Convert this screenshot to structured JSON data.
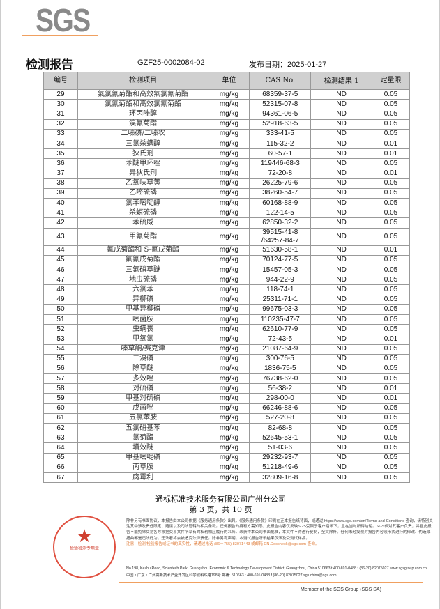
{
  "header": {
    "logo": "SGS",
    "title": "检测报告",
    "report_no": "GZF25-0002084-02",
    "date": "发布日期：2025-01-27"
  },
  "table": {
    "headers": [
      "编号",
      "检测项目",
      "单位",
      "CAS No.",
      "检测结果 1",
      "定量限"
    ],
    "rows": [
      [
        "29",
        "氟氯氰菊酯和高效氟氯氰菊酯",
        "mg/kg",
        "68359-37-5",
        "ND",
        "0.05"
      ],
      [
        "30",
        "氯氰菊酯和高效氯氰菊酯",
        "mg/kg",
        "52315-07-8",
        "ND",
        "0.05"
      ],
      [
        "31",
        "环丙唑醇",
        "mg/kg",
        "94361-06-5",
        "ND",
        "0.05"
      ],
      [
        "32",
        "溴氰菊酯",
        "mg/kg",
        "52918-63-5",
        "ND",
        "0.05"
      ],
      [
        "33",
        "二嗪磷/二嗪农",
        "mg/kg",
        "333-41-5",
        "ND",
        "0.05"
      ],
      [
        "34",
        "三氯杀螨醇",
        "mg/kg",
        "115-32-2",
        "ND",
        "0.01"
      ],
      [
        "35",
        "狄氏剂",
        "mg/kg",
        "60-57-1",
        "ND",
        "0.01"
      ],
      [
        "36",
        "苯醚甲环唑",
        "mg/kg",
        "119446-68-3",
        "ND",
        "0.05"
      ],
      [
        "37",
        "异狄氏剂",
        "mg/kg",
        "72-20-8",
        "ND",
        "0.01"
      ],
      [
        "38",
        "乙氧呋草黄",
        "mg/kg",
        "26225-79-6",
        "ND",
        "0.05"
      ],
      [
        "39",
        "乙嘧硫磷",
        "mg/kg",
        "38260-54-7",
        "ND",
        "0.05"
      ],
      [
        "40",
        "氯苯嘧啶醇",
        "mg/kg",
        "60168-88-9",
        "ND",
        "0.05"
      ],
      [
        "41",
        "杀螟硫磷",
        "mg/kg",
        "122-14-5",
        "ND",
        "0.05"
      ],
      [
        "42",
        "苯硫威",
        "mg/kg",
        "62850-32-2",
        "ND",
        "0.05"
      ],
      [
        "43",
        "甲氰菊酯",
        "mg/kg",
        "39515-41-8 /64257-84-7",
        "ND",
        "0.05"
      ],
      [
        "44",
        "氰戊菊酯和 S-氰戊菊酯",
        "mg/kg",
        "51630-58-1",
        "ND",
        "0.01"
      ],
      [
        "45",
        "氟氰戊菊酯",
        "mg/kg",
        "70124-77-5",
        "ND",
        "0.05"
      ],
      [
        "46",
        "三氟硝草醚",
        "mg/kg",
        "15457-05-3",
        "ND",
        "0.05"
      ],
      [
        "47",
        "地虫硫磷",
        "mg/kg",
        "944-22-9",
        "ND",
        "0.05"
      ],
      [
        "48",
        "六氯苯",
        "mg/kg",
        "118-74-1",
        "ND",
        "0.05"
      ],
      [
        "49",
        "异柳磷",
        "mg/kg",
        "25311-71-1",
        "ND",
        "0.05"
      ],
      [
        "50",
        "甲基异柳磷",
        "mg/kg",
        "99675-03-3",
        "ND",
        "0.05"
      ],
      [
        "51",
        "嘧菌胺",
        "mg/kg",
        "110235-47-7",
        "ND",
        "0.05"
      ],
      [
        "52",
        "虫螨畏",
        "mg/kg",
        "62610-77-9",
        "ND",
        "0.05"
      ],
      [
        "53",
        "甲氧氯",
        "mg/kg",
        "72-43-5",
        "ND",
        "0.01"
      ],
      [
        "54",
        "嗪草酮/赛克津",
        "mg/kg",
        "21087-64-9",
        "ND",
        "0.05"
      ],
      [
        "55",
        "二溴磷",
        "mg/kg",
        "300-76-5",
        "ND",
        "0.05"
      ],
      [
        "56",
        "除草醚",
        "mg/kg",
        "1836-75-5",
        "ND",
        "0.05"
      ],
      [
        "57",
        "多效唑",
        "mg/kg",
        "76738-62-0",
        "ND",
        "0.05"
      ],
      [
        "58",
        "对硫磷",
        "mg/kg",
        "56-38-2",
        "ND",
        "0.01"
      ],
      [
        "59",
        "甲基对硫磷",
        "mg/kg",
        "298-00-0",
        "ND",
        "0.01"
      ],
      [
        "60",
        "戊菌唑",
        "mg/kg",
        "66246-88-6",
        "ND",
        "0.05"
      ],
      [
        "61",
        "五氯苯胺",
        "mg/kg",
        "527-20-8",
        "ND",
        "0.05"
      ],
      [
        "62",
        "五氯硝基苯",
        "mg/kg",
        "82-68-8",
        "ND",
        "0.05"
      ],
      [
        "63",
        "氯菊酯",
        "mg/kg",
        "52645-53-1",
        "ND",
        "0.05"
      ],
      [
        "64",
        "增效醚",
        "mg/kg",
        "51-03-6",
        "ND",
        "0.05"
      ],
      [
        "65",
        "甲基嘧啶磷",
        "mg/kg",
        "29232-93-7",
        "ND",
        "0.05"
      ],
      [
        "66",
        "丙草胺",
        "mg/kg",
        "51218-49-6",
        "ND",
        "0.05"
      ],
      [
        "67",
        "腐霉利",
        "mg/kg",
        "32809-16-8",
        "ND",
        "0.05"
      ]
    ]
  },
  "footer": {
    "company": "通标标准技术服务有限公司广州分公司",
    "page": "第 3 页，共 10 页",
    "disclaimer": "除非另有书面协议，本报告由本公司依据《服务通用条款》出具。《服务通用条款》印刷在正本报告纸背面，或通过 https://www.sgs.com/en/Terms-and-Conditions 查询，请特别关注其中涉及责任限定、赔偿以及司法管辖的相关条款。任何报告的持有方需知悉，此报告内容仅反映SGS受限于客户指示下，且在当时所得结论。SGS仅对其客户负责，并且此报告不能免除交易各方根据交易文件所享有的权利和应履行的义务。未获得本公司书面批准，本文件不得进行复制，全文除外。任何未经授权对报告内容及形式进行的修改、伪造或扭曲都是违法行为，违法者将会被追究法律责任。除非另有声明，本测试报告所示结果仅涉及受测试样品。",
    "note": "注意：检测/检验报告或证书的真实性，请通过电话 (86－755) 83071443 或邮箱 CN.Doccheck@sgs.com 查询。",
    "address_en": "No.198, Kezhu Road, Scientech Park, Guangzhou Economic & Technology Development District, Guangzhou, China  510663  t 400-691-0488  f (86-20) 82075027  www.sgsgroup.com.cn",
    "address_cn": "中国・广东・广州高新技术产业开发区科学城科珠路198号  邮编: 510663  t 400-691-0488  f (86-20) 82075027  sgs.china@sgs.com",
    "member": "Member of the SGS Group (SGS SA)",
    "seal": {
      "text": "通标标准技术服务有限公司广州分公司 检验检测专用章 Inspection & Testing Services",
      "sub": "通标标准技术服务有限公司广州分公司检测中心 农产食品实验室",
      "color": "#d04030"
    }
  }
}
